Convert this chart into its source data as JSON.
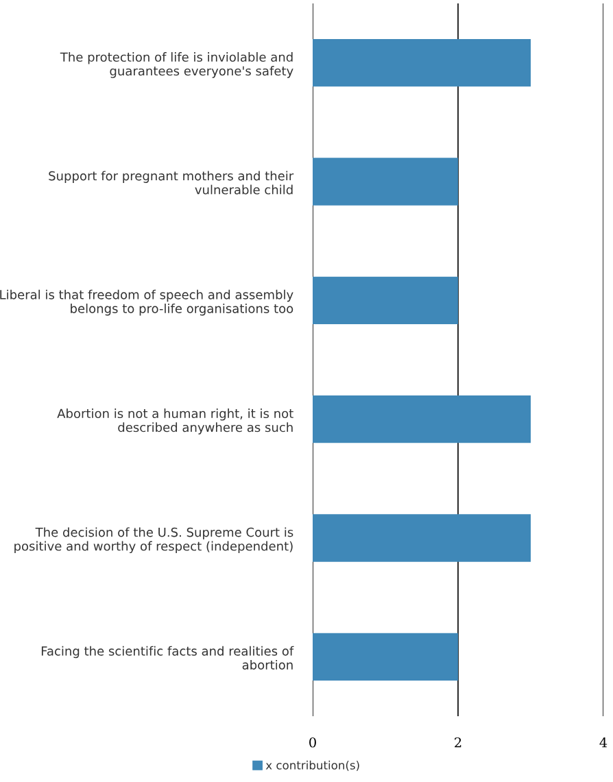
{
  "chart_data": {
    "type": "bar",
    "orientation": "horizontal",
    "categories": [
      "The protection of life is inviolable and\nguarantees everyone's safety",
      "Support for pregnant mothers and their\nvulnerable child",
      "Liberal is that freedom of speech and assembly\nbelongs to pro-life organisations too",
      "Abortion is not a human right, it is not\ndescribed anywhere as such",
      "The decision of the U.S. Supreme Court is\npositive and worthy of respect (independent)",
      "Facing the scientific facts and realities of\nabortion"
    ],
    "series": [
      {
        "name": "x contribution(s)",
        "color": "#3f88b8",
        "values": [
          3,
          2,
          2,
          3,
          3,
          2
        ]
      }
    ],
    "xlim": [
      0,
      4
    ],
    "xticks": [
      0,
      2,
      4
    ],
    "grid": "x",
    "legend": "bottom"
  }
}
